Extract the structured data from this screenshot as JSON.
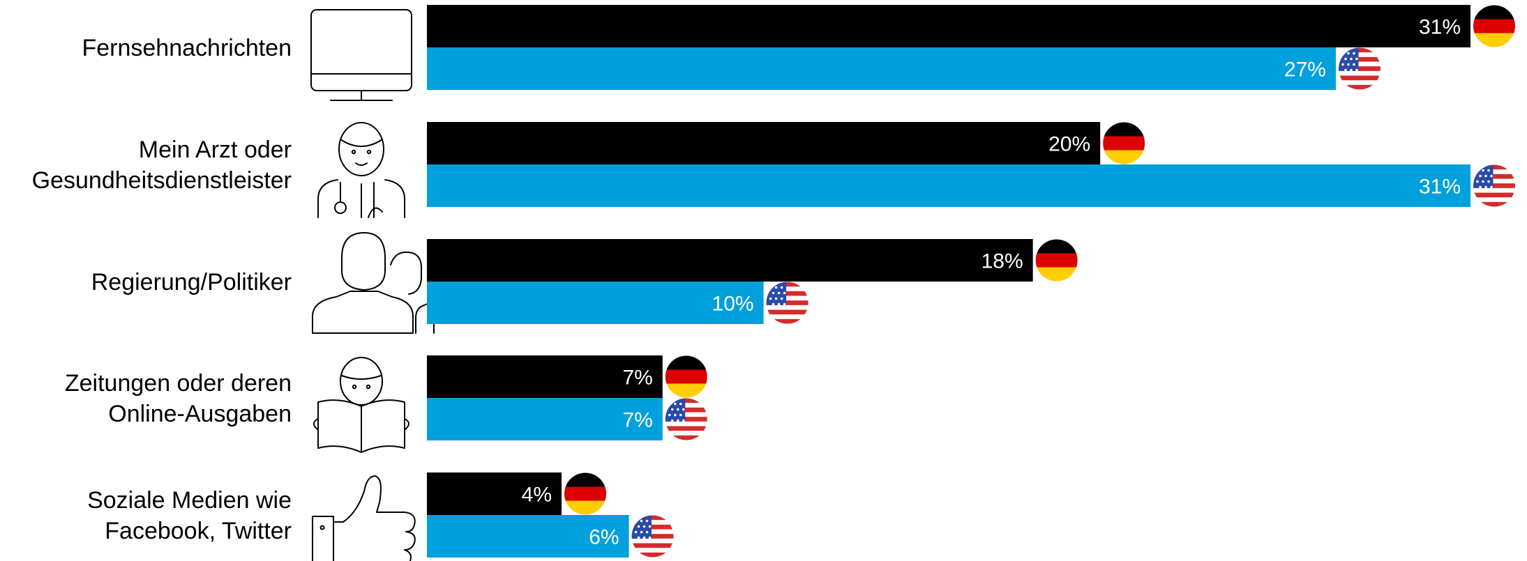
{
  "colors": {
    "germany": "#000000",
    "usa": "#00a0dc",
    "value_text": "#ffffff",
    "label_text": "#000000"
  },
  "chart_data": {
    "type": "bar",
    "orientation": "horizontal",
    "categories": [
      "Fernsehnachrichten",
      "Mein Arzt oder Gesundheitsdienstleister",
      "Regierung/Politiker",
      "Zeitungen oder deren Online-Ausgaben",
      "Soziale Medien wie Facebook, Twitter"
    ],
    "category_lines": [
      [
        "Fernsehnachrichten"
      ],
      [
        "Mein Arzt oder",
        "Gesundheitsdienstleister"
      ],
      [
        "Regierung/Politiker"
      ],
      [
        "Zeitungen oder deren",
        "Online-Ausgaben"
      ],
      [
        "Soziale Medien wie",
        "Facebook, Twitter"
      ]
    ],
    "category_icons": [
      "monitor-icon",
      "doctor-icon",
      "politicians-icon",
      "newspaper-reader-icon",
      "thumbs-up-icon"
    ],
    "series": [
      {
        "flag": "germany-flag-icon",
        "values": [
          31,
          20,
          18,
          7,
          4
        ],
        "labels": [
          "31%",
          "20%",
          "18%",
          "7%",
          "4%"
        ]
      },
      {
        "flag": "usa-flag-icon",
        "values": [
          27,
          31,
          10,
          7,
          6
        ],
        "labels": [
          "27%",
          "31%",
          "10%",
          "7%",
          "6%"
        ]
      }
    ],
    "xlim": [
      0,
      31
    ],
    "unit": "%",
    "grid": false,
    "legend": "none"
  }
}
